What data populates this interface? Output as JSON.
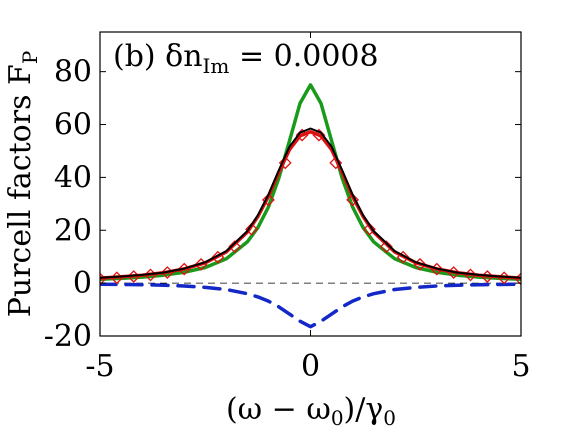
{
  "chart_data": {
    "type": "line",
    "panel_label": "(b) δn",
    "panel_label_subscript": "Im",
    "panel_label_value": " = 0.0008",
    "xlabel": "(ω − ω",
    "xlabel_sub0": "0",
    "xlabel_mid": ")/γ",
    "xlabel_sub1": "0",
    "ylabel": "Purcell factors F",
    "ylabel_subscript": "P",
    "xlim": [
      -5,
      5
    ],
    "ylim": [
      -20,
      95
    ],
    "xticks": [
      -5,
      0,
      5
    ],
    "xtick_labels": [
      "-5",
      "0",
      "5"
    ],
    "yticks": [
      -20,
      0,
      20,
      40,
      60,
      80
    ],
    "ytick_labels": [
      "-20",
      "0",
      "20",
      "40",
      "60",
      "80"
    ],
    "grid": false,
    "legend": "none",
    "series": [
      {
        "style": "solid",
        "color": "#1a9a1a",
        "x": [
          -5,
          -4.5,
          -4,
          -3.5,
          -3,
          -2.5,
          -2,
          -1.5,
          -1.25,
          -1,
          -0.75,
          -0.5,
          -0.25,
          0,
          0.25,
          0.5,
          0.75,
          1,
          1.25,
          1.5,
          2,
          2.5,
          3,
          3.5,
          4,
          4.5,
          5
        ],
        "y": [
          1.5,
          1.8,
          2.3,
          3.0,
          4.1,
          5.9,
          9.2,
          15.6,
          21.0,
          28.8,
          39.8,
          53.8,
          68.0,
          75.0,
          68.0,
          53.8,
          39.8,
          28.8,
          21.0,
          15.6,
          9.2,
          5.9,
          4.1,
          3.0,
          2.3,
          1.8,
          1.5
        ]
      },
      {
        "style": "solid",
        "color": "#000000",
        "x": [
          -5,
          -4.5,
          -4,
          -3.5,
          -3,
          -2.5,
          -2,
          -1.5,
          -1.25,
          -1,
          -0.75,
          -0.5,
          -0.25,
          0,
          0.25,
          0.5,
          0.75,
          1,
          1.25,
          1.5,
          2,
          2.5,
          3,
          3.5,
          4,
          4.5,
          5
        ],
        "y": [
          2.0,
          2.5,
          3.1,
          4.0,
          5.5,
          7.9,
          12.1,
          19.7,
          25.7,
          33.5,
          42.8,
          51.6,
          56.9,
          58.5,
          56.9,
          51.6,
          42.8,
          33.5,
          25.7,
          19.7,
          12.1,
          7.9,
          5.5,
          4.0,
          3.1,
          2.5,
          2.0
        ]
      },
      {
        "style": "solid",
        "color": "#e01010",
        "x": [
          -5,
          -4.5,
          -4,
          -3.5,
          -3,
          -2.5,
          -2,
          -1.5,
          -1.25,
          -1,
          -0.75,
          -0.5,
          -0.25,
          0,
          0.25,
          0.5,
          0.75,
          1,
          1.25,
          1.5,
          2,
          2.5,
          3,
          3.5,
          4,
          4.5,
          5
        ],
        "y": [
          1.9,
          2.4,
          3.0,
          3.9,
          5.4,
          7.7,
          11.8,
          19.3,
          25.2,
          32.8,
          42.0,
          50.5,
          55.7,
          57.3,
          55.7,
          50.5,
          42.0,
          32.8,
          25.2,
          19.3,
          11.8,
          7.7,
          5.4,
          3.9,
          3.0,
          2.4,
          1.9
        ]
      },
      {
        "style": "dashed",
        "color": "#1428c8",
        "x": [
          -5,
          -4.5,
          -4,
          -3.5,
          -3,
          -2.5,
          -2,
          -1.5,
          -1.25,
          -1,
          -0.75,
          -0.5,
          -0.25,
          0,
          0.25,
          0.5,
          0.75,
          1,
          1.25,
          1.5,
          2,
          2.5,
          3,
          3.5,
          4,
          4.5,
          5
        ],
        "y": [
          -0.4,
          -0.5,
          -0.6,
          -0.8,
          -1.1,
          -1.6,
          -2.4,
          -4.0,
          -5.2,
          -6.8,
          -9.0,
          -11.7,
          -14.4,
          -16.5,
          -14.4,
          -11.7,
          -9.0,
          -6.8,
          -5.2,
          -4.0,
          -2.4,
          -1.6,
          -1.1,
          -0.8,
          -0.6,
          -0.5,
          -0.4
        ]
      },
      {
        "style": "markers",
        "marker": "diamond",
        "color": "#e01010",
        "x": [
          -5,
          -4.6,
          -4.2,
          -3.8,
          -3.4,
          -3.0,
          -2.6,
          -2.2,
          -1.8,
          -1.4,
          -1.0,
          -0.6,
          -0.2,
          0.2,
          0.6,
          1.0,
          1.4,
          1.8,
          2.2,
          2.6,
          3.0,
          3.4,
          3.8,
          4.2,
          4.6,
          5
        ],
        "y": [
          1.6,
          2.0,
          2.5,
          3.1,
          4.0,
          5.3,
          7.1,
          9.8,
          13.8,
          20.4,
          31.5,
          45.5,
          56.0,
          56.0,
          45.5,
          31.5,
          20.4,
          13.8,
          9.8,
          7.1,
          5.3,
          4.0,
          3.1,
          2.5,
          2.0,
          1.6
        ]
      }
    ],
    "reference_line": {
      "y": 0,
      "style": "dashed",
      "color": "#000000"
    }
  }
}
